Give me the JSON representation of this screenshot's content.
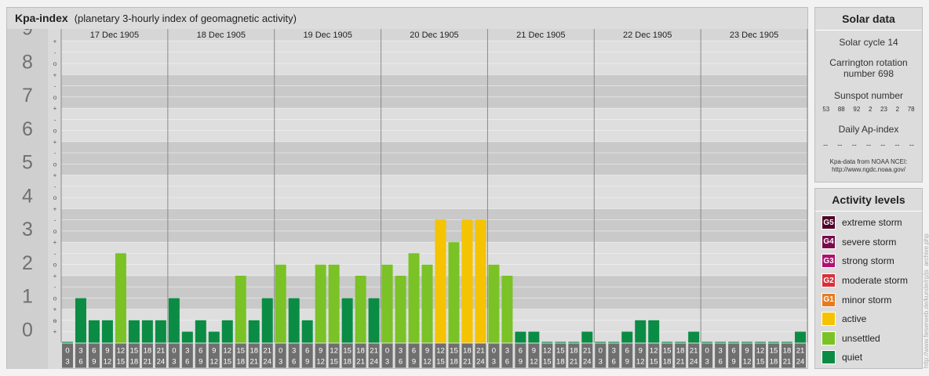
{
  "header": {
    "title": "Kpa-index",
    "subtitle": "(planetary 3-hourly index of geomagnetic activity)"
  },
  "solar": {
    "title": "Solar data",
    "cycle": "Solar cycle 14",
    "carrington": "Carrington rotation number 698",
    "sunspot_label": "Sunspot number",
    "sunspots": [
      "53",
      "88",
      "92",
      "2",
      "23",
      "2",
      "78"
    ],
    "ap_label": "Daily Ap-index",
    "ap": [
      "--",
      "--",
      "--",
      "--",
      "--",
      "--",
      "--"
    ],
    "source": "Kpa-data from NOAA NCEI: http://www.ngdc.noaa.gov/"
  },
  "levels": {
    "title": "Activity levels",
    "items": [
      {
        "badge": "G5",
        "label": "extreme storm",
        "color": "#4d0026"
      },
      {
        "badge": "G4",
        "label": "severe storm",
        "color": "#7a0a4a"
      },
      {
        "badge": "G3",
        "label": "strong storm",
        "color": "#b01070"
      },
      {
        "badge": "G2",
        "label": "moderate storm",
        "color": "#d8303a"
      },
      {
        "badge": "G1",
        "label": "minor storm",
        "color": "#e87a1e"
      },
      {
        "badge": "",
        "label": "active",
        "color": "#f5c300"
      },
      {
        "badge": "",
        "label": "unsettled",
        "color": "#7ac225"
      },
      {
        "badge": "",
        "label": "quiet",
        "color": "#0b8c44"
      }
    ]
  },
  "credit": "http://www.fieserweb.de/kunde/rg/js_archive.php",
  "chart_data": {
    "type": "bar",
    "title": "Kpa-index",
    "days": [
      "17 Dec 1905",
      "18 Dec 1905",
      "19 Dec 1905",
      "20 Dec 1905",
      "21 Dec 1905",
      "22 Dec 1905",
      "23 Dec 1905"
    ],
    "y_ticks": [
      "0",
      "1",
      "2",
      "3",
      "4",
      "5",
      "6",
      "7",
      "8",
      "9"
    ],
    "sub_ticks": [
      "-",
      "+",
      "o"
    ],
    "slots": [
      [
        "0",
        "3"
      ],
      [
        "3",
        "6"
      ],
      [
        "6",
        "9"
      ],
      [
        "9",
        "12"
      ],
      [
        "12",
        "15"
      ],
      [
        "15",
        "18"
      ],
      [
        "18",
        "21"
      ],
      [
        "21",
        "24"
      ]
    ],
    "ylim": [
      0,
      9
    ],
    "values": [
      0,
      1.33,
      0.67,
      0.67,
      2.67,
      0.67,
      0.67,
      0.67,
      1.33,
      0.33,
      0.67,
      0.33,
      0.67,
      2,
      0.67,
      1.33,
      2.33,
      1.33,
      0.67,
      2.33,
      2.33,
      1.33,
      2,
      1.33,
      2.33,
      2,
      2.67,
      2.33,
      3.67,
      3,
      3.67,
      3.67,
      2.33,
      2,
      0.33,
      0.33,
      0,
      0,
      0,
      0.33,
      0,
      0,
      0.33,
      0.67,
      0.67,
      0,
      0,
      0.33,
      0,
      0,
      0,
      0,
      0,
      0,
      0,
      0.33
    ],
    "colors": {
      "quiet": "#0b8c44",
      "unsettled": "#7ac225",
      "active": "#f5c300"
    },
    "grid": true
  }
}
